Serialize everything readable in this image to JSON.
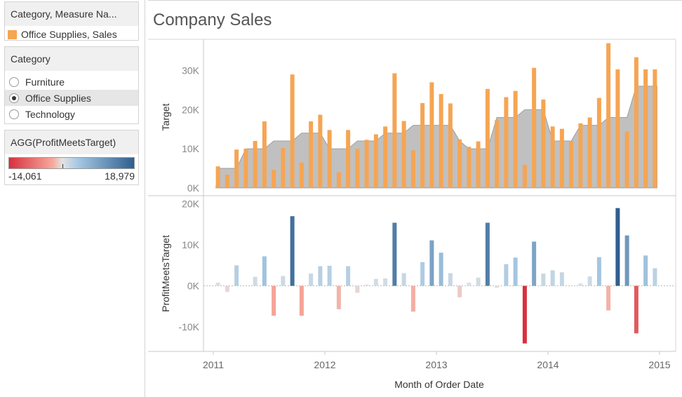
{
  "legend_color": {
    "title": "Category, Measure Na...",
    "item_label": "Office Supplies, Sales",
    "item_color": "#f5a553"
  },
  "category_filter": {
    "title": "Category",
    "options": [
      "Furniture",
      "Office Supplies",
      "Technology"
    ],
    "selected": "Office Supplies"
  },
  "diverging_legend": {
    "title": "AGG(ProfitMeetsTarget)",
    "min_label": "-14,061",
    "max_label": "18,979",
    "colors": [
      "#d7303f",
      "#f6a99b",
      "#e3e3e3",
      "#a6c8e3",
      "#2f5f8f"
    ]
  },
  "chart_data": {
    "type": "bar",
    "title": "Company Sales",
    "xlabel": "Month of Order Date",
    "x_tick_labels": [
      "2011",
      "2012",
      "2013",
      "2014",
      "2015"
    ],
    "months": [
      "2011-01",
      "2011-02",
      "2011-03",
      "2011-04",
      "2011-05",
      "2011-06",
      "2011-07",
      "2011-08",
      "2011-09",
      "2011-10",
      "2011-11",
      "2011-12",
      "2012-01",
      "2012-02",
      "2012-03",
      "2012-04",
      "2012-05",
      "2012-06",
      "2012-07",
      "2012-08",
      "2012-09",
      "2012-10",
      "2012-11",
      "2012-12",
      "2013-01",
      "2013-02",
      "2013-03",
      "2013-04",
      "2013-05",
      "2013-06",
      "2013-07",
      "2013-08",
      "2013-09",
      "2013-10",
      "2013-11",
      "2013-12",
      "2014-01",
      "2014-02",
      "2014-03",
      "2014-04",
      "2014-05",
      "2014-06",
      "2014-07",
      "2014-08",
      "2014-09",
      "2014-10",
      "2014-11",
      "2014-12"
    ],
    "panels": [
      {
        "ylabel": "Target",
        "y_tick_labels": [
          "0K",
          "10K",
          "20K",
          "30K"
        ],
        "y_ticks": [
          0,
          10000,
          20000,
          30000
        ],
        "ylim": [
          -2000,
          38000
        ],
        "series": [
          {
            "name": "Sales",
            "mark": "bar",
            "color": "#f5a553",
            "values": [
              5500,
              3400,
              9800,
              10000,
              12000,
              17000,
              4600,
              10200,
              29000,
              6500,
              17000,
              18700,
              14800,
              4000,
              14800,
              10000,
              12300,
              13700,
              15700,
              29300,
              17100,
              9600,
              21700,
              27000,
              24000,
              21600,
              12400,
              10500,
              11900,
              25300,
              17300,
              23200,
              24800,
              5900,
              30700,
              22600,
              15700,
              15100,
              12000,
              16500,
              18000,
              23000,
              37000,
              30300,
              14400,
              33400,
              30300,
              30300
            ]
          },
          {
            "name": "Target",
            "mark": "area",
            "color": "#bdbdbd",
            "values": [
              5000,
              5000,
              5000,
              10000,
              10000,
              10000,
              12000,
              12000,
              12000,
              14000,
              14000,
              14000,
              10000,
              10000,
              10000,
              12000,
              12000,
              12000,
              14000,
              14000,
              14000,
              16000,
              16000,
              16000,
              16000,
              16000,
              12000,
              10000,
              10000,
              10000,
              18000,
              18000,
              18000,
              20000,
              20000,
              20000,
              12000,
              12000,
              12000,
              16000,
              16000,
              16000,
              18000,
              18000,
              18000,
              26000,
              26000,
              26000
            ]
          }
        ]
      },
      {
        "ylabel": "ProfitMeetsTarget",
        "y_tick_labels": [
          "-10K",
          "0K",
          "10K",
          "20K"
        ],
        "y_ticks": [
          -10000,
          0,
          10000,
          20000
        ],
        "ylim": [
          -16000,
          22000
        ],
        "series": [
          {
            "name": "ProfitMeetsTarget",
            "mark": "bar",
            "values": [
              800,
              -1500,
              5000,
              0,
              2200,
              7200,
              -7300,
              2400,
              17000,
              -7300,
              3000,
              4800,
              4900,
              -5700,
              4800,
              -1700,
              300,
              1700,
              1800,
              15400,
              3100,
              -6300,
              5800,
              11100,
              8100,
              3100,
              -2800,
              800,
              2000,
              15400,
              -500,
              5300,
              6900,
              -14061,
              10800,
              3000,
              3800,
              3300,
              0,
              600,
              2300,
              7000,
              -6000,
              18979,
              12300,
              -11600,
              7400,
              4300
            ]
          }
        ]
      }
    ],
    "color_scale": {
      "min": -14061,
      "max": 18979,
      "stops": [
        "#d7303f",
        "#f6a99b",
        "#e3e3e3",
        "#a6c8e3",
        "#2f5f8f"
      ]
    }
  }
}
